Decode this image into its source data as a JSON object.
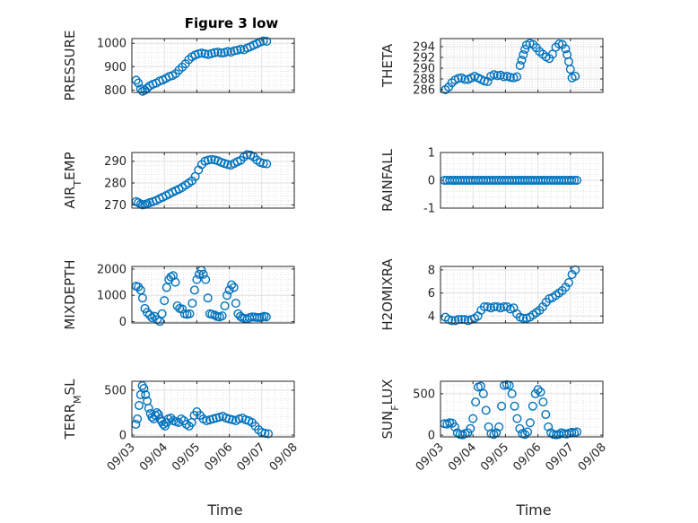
{
  "figure": {
    "title": "Figure 3 low",
    "xlabel": "Time",
    "marker_color": "#0072bd",
    "x_ticks": [
      "09/03",
      "09/04",
      "09/05",
      "09/06",
      "09/07",
      "09/08"
    ]
  },
  "chart_data": [
    {
      "type": "scatter",
      "ylabel_parts": [
        {
          "t": "PRESSURE"
        }
      ],
      "ylim": [
        790,
        1020
      ],
      "yticks": [
        800,
        900,
        1000
      ],
      "grid": true,
      "minor_grid": true,
      "xlim": [
        0,
        5
      ],
      "x": [
        0.13,
        0.2,
        0.27,
        0.33,
        0.4,
        0.47,
        0.55,
        0.65,
        0.75,
        0.85,
        0.95,
        1.05,
        1.15,
        1.25,
        1.35,
        1.45,
        1.55,
        1.65,
        1.75,
        1.85,
        1.95,
        2.05,
        2.15,
        2.25,
        2.35,
        2.45,
        2.55,
        2.65,
        2.75,
        2.85,
        2.95,
        3.05,
        3.15,
        3.25,
        3.35,
        3.45,
        3.55,
        3.65,
        3.75,
        3.85,
        3.95,
        4.05,
        4.15
      ],
      "values": [
        842,
        830,
        805,
        795,
        800,
        808,
        818,
        825,
        830,
        838,
        843,
        850,
        858,
        862,
        870,
        885,
        898,
        912,
        930,
        942,
        950,
        955,
        958,
        955,
        952,
        956,
        960,
        962,
        958,
        960,
        965,
        962,
        968,
        970,
        975,
        972,
        980,
        985,
        992,
        998,
        1005,
        1010,
        1008
      ]
    },
    {
      "type": "scatter",
      "ylabel_parts": [
        {
          "t": "THETA"
        }
      ],
      "ylim": [
        285.5,
        295.5
      ],
      "yticks": [
        286,
        288,
        290,
        292,
        294
      ],
      "grid": true,
      "minor_grid": true,
      "xlim": [
        0,
        5
      ],
      "x": [
        0.15,
        0.25,
        0.35,
        0.45,
        0.55,
        0.65,
        0.75,
        0.85,
        0.95,
        1.05,
        1.15,
        1.25,
        1.35,
        1.45,
        1.55,
        1.65,
        1.75,
        1.85,
        1.95,
        2.05,
        2.15,
        2.25,
        2.35,
        2.45,
        2.5,
        2.55,
        2.6,
        2.65,
        2.75,
        2.85,
        2.95,
        3.05,
        3.15,
        3.25,
        3.35,
        3.45,
        3.55,
        3.65,
        3.75,
        3.85,
        3.9,
        3.95,
        4.0,
        4.05,
        4.15
      ],
      "values": [
        286,
        286.5,
        287.3,
        287.8,
        288.1,
        288.2,
        287.9,
        287.9,
        288.2,
        288.5,
        288.2,
        287.9,
        287.6,
        287.5,
        288.5,
        288.8,
        288.6,
        288.7,
        288.4,
        288.5,
        288.3,
        288.2,
        288.4,
        290.5,
        291.5,
        292.5,
        293.5,
        294.3,
        294.6,
        294.4,
        293.8,
        293.1,
        292.6,
        292.1,
        291.8,
        292.6,
        293.9,
        294.5,
        294.4,
        293.6,
        292.5,
        291.2,
        289.8,
        288.2,
        288.5
      ]
    },
    {
      "type": "scatter",
      "ylabel_parts": [
        {
          "t": "AIR"
        },
        {
          "t": "T",
          "sub": true
        },
        {
          "t": "EMP"
        }
      ],
      "ylim": [
        268.5,
        294
      ],
      "yticks": [
        270,
        280,
        290
      ],
      "grid": true,
      "minor_grid": true,
      "xlim": [
        0,
        5
      ],
      "x": [
        0.13,
        0.2,
        0.27,
        0.33,
        0.4,
        0.47,
        0.55,
        0.65,
        0.75,
        0.85,
        0.95,
        1.05,
        1.15,
        1.25,
        1.35,
        1.45,
        1.55,
        1.65,
        1.75,
        1.85,
        1.95,
        2.05,
        2.15,
        2.25,
        2.35,
        2.45,
        2.55,
        2.65,
        2.75,
        2.85,
        2.95,
        3.05,
        3.15,
        3.25,
        3.35,
        3.45,
        3.55,
        3.65,
        3.75,
        3.85,
        3.95,
        4.05,
        4.15
      ],
      "values": [
        271.5,
        271,
        270.3,
        270,
        270.2,
        270.5,
        271,
        271.5,
        272,
        272.8,
        273.5,
        274.2,
        275,
        275.8,
        276.5,
        277.2,
        278,
        279,
        280,
        281,
        283,
        286,
        288.5,
        290,
        290.5,
        290.8,
        290.6,
        290.2,
        289.5,
        289,
        288.5,
        288.2,
        289,
        289.8,
        290.4,
        292,
        293,
        292.8,
        292,
        290.5,
        289.5,
        289,
        288.8
      ]
    },
    {
      "type": "scatter",
      "ylabel_parts": [
        {
          "t": "RAINFALL"
        }
      ],
      "ylim": [
        -1,
        1
      ],
      "yticks": [
        -1,
        0,
        1
      ],
      "grid": true,
      "minor_grid": true,
      "xlim": [
        0,
        5
      ],
      "x": [
        0.12,
        0.2,
        0.28,
        0.36,
        0.44,
        0.52,
        0.6,
        0.68,
        0.76,
        0.84,
        0.92,
        1.0,
        1.08,
        1.16,
        1.24,
        1.32,
        1.4,
        1.48,
        1.56,
        1.64,
        1.72,
        1.8,
        1.88,
        1.96,
        2.04,
        2.12,
        2.2,
        2.28,
        2.36,
        2.44,
        2.52,
        2.6,
        2.68,
        2.76,
        2.84,
        2.92,
        3.0,
        3.08,
        3.16,
        3.24,
        3.32,
        3.4,
        3.48,
        3.56,
        3.64,
        3.72,
        3.8,
        3.88,
        3.96,
        4.04,
        4.12,
        4.2
      ],
      "values": [
        0,
        0,
        0,
        0,
        0,
        0,
        0,
        0,
        0,
        0,
        0,
        0,
        0,
        0,
        0,
        0,
        0,
        0,
        0,
        0,
        0,
        0,
        0,
        0,
        0,
        0,
        0,
        0,
        0,
        0,
        0,
        0,
        0,
        0,
        0,
        0,
        0,
        0,
        0,
        0,
        0,
        0,
        0,
        0,
        0,
        0,
        0,
        0,
        0,
        0,
        0,
        0
      ]
    },
    {
      "type": "scatter",
      "ylabel_parts": [
        {
          "t": "MIXDEPTH"
        }
      ],
      "ylim": [
        -50,
        2100
      ],
      "yticks": [
        0,
        1000,
        2000
      ],
      "grid": true,
      "minor_grid": true,
      "xlim": [
        0,
        5
      ],
      "x": [
        0.13,
        0.2,
        0.27,
        0.33,
        0.4,
        0.47,
        0.55,
        0.62,
        0.7,
        0.78,
        0.86,
        0.93,
        1.0,
        1.07,
        1.14,
        1.2,
        1.27,
        1.34,
        1.4,
        1.47,
        1.55,
        1.62,
        1.7,
        1.78,
        1.86,
        1.93,
        2.0,
        2.07,
        2.14,
        2.2,
        2.27,
        2.34,
        2.4,
        2.47,
        2.55,
        2.62,
        2.7,
        2.78,
        2.86,
        2.93,
        3.0,
        3.07,
        3.14,
        3.2,
        3.27,
        3.34,
        3.4,
        3.47,
        3.55,
        3.62,
        3.7,
        3.78,
        3.86,
        3.93,
        4.0,
        4.07,
        4.14
      ],
      "values": [
        1350,
        1320,
        1200,
        900,
        500,
        350,
        250,
        150,
        200,
        80,
        10,
        300,
        800,
        1300,
        1600,
        1700,
        1750,
        1500,
        600,
        500,
        480,
        300,
        280,
        300,
        700,
        1200,
        1600,
        1800,
        1950,
        1800,
        1600,
        900,
        300,
        280,
        250,
        200,
        180,
        220,
        600,
        1000,
        1200,
        1400,
        1300,
        700,
        300,
        200,
        150,
        120,
        100,
        150,
        180,
        170,
        160,
        150,
        170,
        200,
        180
      ]
    },
    {
      "type": "scatter",
      "ylabel_parts": [
        {
          "t": "H2OMIXRA"
        }
      ],
      "ylim": [
        3.4,
        8.3
      ],
      "yticks": [
        4,
        6,
        8
      ],
      "grid": true,
      "minor_grid": true,
      "xlim": [
        0,
        5
      ],
      "x": [
        0.15,
        0.25,
        0.35,
        0.45,
        0.55,
        0.65,
        0.75,
        0.85,
        0.95,
        1.05,
        1.15,
        1.25,
        1.35,
        1.45,
        1.55,
        1.65,
        1.75,
        1.85,
        1.95,
        2.05,
        2.15,
        2.25,
        2.35,
        2.45,
        2.55,
        2.65,
        2.75,
        2.85,
        2.95,
        3.05,
        3.15,
        3.25,
        3.35,
        3.45,
        3.55,
        3.65,
        3.75,
        3.85,
        3.95,
        4.05,
        4.15
      ],
      "values": [
        3.9,
        3.7,
        3.6,
        3.6,
        3.7,
        3.7,
        3.7,
        3.6,
        3.7,
        3.8,
        4.0,
        4.5,
        4.8,
        4.8,
        4.7,
        4.8,
        4.8,
        4.7,
        4.8,
        4.8,
        4.6,
        4.7,
        4.2,
        3.9,
        3.8,
        3.8,
        3.9,
        4.1,
        4.3,
        4.5,
        4.8,
        5.2,
        5.5,
        5.6,
        5.8,
        6.0,
        6.2,
        6.5,
        6.9,
        7.6,
        8.0
      ]
    },
    {
      "type": "scatter",
      "ylabel_parts": [
        {
          "t": "TERR"
        },
        {
          "t": "M",
          "sub": true
        },
        {
          "t": "SL"
        }
      ],
      "ylim": [
        -20,
        600
      ],
      "yticks": [
        0,
        500
      ],
      "grid": true,
      "minor_grid": true,
      "xlim": [
        0,
        5
      ],
      "x": [
        0.12,
        0.17,
        0.22,
        0.27,
        0.32,
        0.37,
        0.42,
        0.47,
        0.52,
        0.57,
        0.62,
        0.67,
        0.72,
        0.77,
        0.82,
        0.87,
        0.92,
        0.97,
        1.02,
        1.07,
        1.12,
        1.2,
        1.28,
        1.36,
        1.44,
        1.52,
        1.6,
        1.68,
        1.76,
        1.84,
        1.92,
        2.0,
        2.1,
        2.2,
        2.3,
        2.4,
        2.5,
        2.6,
        2.7,
        2.8,
        2.9,
        3.0,
        3.1,
        3.2,
        3.3,
        3.4,
        3.5,
        3.6,
        3.7,
        3.8,
        3.9,
        4.0,
        4.1,
        4.2
      ],
      "values": [
        120,
        180,
        330,
        450,
        550,
        520,
        450,
        380,
        300,
        240,
        200,
        180,
        220,
        250,
        230,
        180,
        150,
        120,
        100,
        140,
        180,
        190,
        160,
        150,
        140,
        180,
        160,
        120,
        100,
        140,
        220,
        260,
        220,
        180,
        160,
        170,
        180,
        190,
        200,
        210,
        190,
        180,
        170,
        160,
        180,
        190,
        170,
        160,
        140,
        100,
        60,
        30,
        20,
        15
      ]
    },
    {
      "type": "scatter",
      "ylabel_parts": [
        {
          "t": "SUN"
        },
        {
          "t": "F",
          "sub": true
        },
        {
          "t": "LUX"
        }
      ],
      "ylim": [
        -20,
        650
      ],
      "yticks": [
        0,
        500
      ],
      "grid": true,
      "minor_grid": true,
      "xlim": [
        0,
        5
      ],
      "x": [
        0.12,
        0.2,
        0.28,
        0.36,
        0.44,
        0.52,
        0.6,
        0.68,
        0.76,
        0.84,
        0.92,
        1.0,
        1.08,
        1.16,
        1.24,
        1.32,
        1.4,
        1.48,
        1.56,
        1.64,
        1.72,
        1.8,
        1.88,
        1.96,
        2.04,
        2.12,
        2.2,
        2.28,
        2.36,
        2.44,
        2.52,
        2.6,
        2.68,
        2.76,
        2.84,
        2.92,
        3.0,
        3.08,
        3.16,
        3.24,
        3.32,
        3.4,
        3.48,
        3.56,
        3.64,
        3.72,
        3.8,
        3.88,
        3.96,
        4.04,
        4.12,
        4.2
      ],
      "values": [
        140,
        135,
        150,
        145,
        100,
        30,
        10,
        5,
        20,
        30,
        80,
        200,
        400,
        580,
        590,
        500,
        300,
        100,
        20,
        10,
        30,
        100,
        350,
        600,
        610,
        600,
        500,
        350,
        200,
        80,
        20,
        10,
        40,
        150,
        350,
        500,
        550,
        520,
        400,
        250,
        100,
        30,
        10,
        5,
        10,
        30,
        20,
        15,
        25,
        35,
        30,
        40
      ]
    }
  ]
}
